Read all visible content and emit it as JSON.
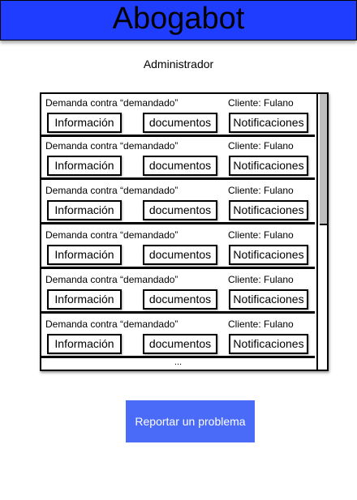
{
  "header": {
    "title": "Abogabot"
  },
  "user_role": "Administrador",
  "cases": [
    {
      "demanda": "Demanda contra “demandado”",
      "cliente": "Cliente: Fulano",
      "info_label": "Información",
      "docs_label": "documentos",
      "notif_label": "Notificaciones"
    },
    {
      "demanda": "Demanda contra “demandado”",
      "cliente": "Cliente: Fulano",
      "info_label": "Información",
      "docs_label": "documentos",
      "notif_label": "Notificaciones"
    },
    {
      "demanda": "Demanda contra “demandado”",
      "cliente": "Cliente: Fulano",
      "info_label": "Información",
      "docs_label": "documentos",
      "notif_label": "Notificaciones"
    },
    {
      "demanda": "Demanda contra “demandado”",
      "cliente": "Cliente: Fulano",
      "info_label": "Información",
      "docs_label": "documentos",
      "notif_label": "Notificaciones"
    },
    {
      "demanda": "Demanda contra “demandado”",
      "cliente": "Cliente: Fulano",
      "info_label": "Información",
      "docs_label": "documentos",
      "notif_label": "Notificaciones"
    },
    {
      "demanda": "Demanda contra “demandado”",
      "cliente": "Cliente: Fulano",
      "info_label": "Información",
      "docs_label": "documentos",
      "notif_label": "Notificaciones"
    }
  ],
  "more_indicator": "...",
  "report_button": "Reportar un problema",
  "colors": {
    "header_bg": "#1f3dff",
    "button_bg": "#4a6af8",
    "scroll_thumb": "#bdbdbd"
  }
}
